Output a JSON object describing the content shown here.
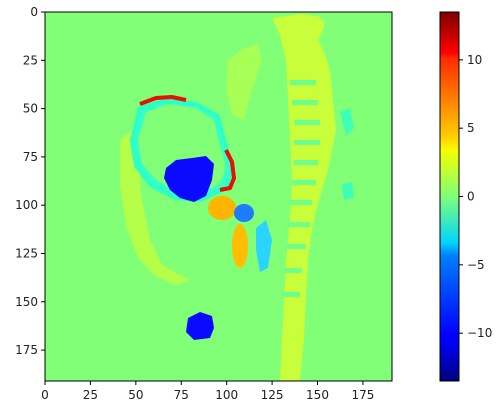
{
  "chart_data": {
    "type": "heatmap",
    "title": "",
    "xlabel": "",
    "ylabel": "",
    "xlim": [
      0,
      191
    ],
    "ylim": [
      191,
      0
    ],
    "x_ticks": [
      0,
      25,
      50,
      75,
      100,
      125,
      150,
      175
    ],
    "y_ticks": [
      0,
      25,
      50,
      75,
      100,
      125,
      150,
      175
    ],
    "colormap": "jet",
    "colorbar": {
      "vmin": -13.5,
      "vmax": 13.5,
      "ticks": [
        10,
        5,
        0,
        -5,
        -10
      ],
      "tick_labels": [
        "10",
        "5",
        "0",
        "−5",
        "−10"
      ]
    },
    "background_value": 0.0,
    "regions": [
      {
        "name": "spine-column",
        "value": 1.5
      },
      {
        "name": "vertebral-bodies",
        "value": -0.6
      },
      {
        "name": "soft-tissue",
        "value": 1.8
      },
      {
        "name": "bladder-rim",
        "value": -3.5
      },
      {
        "name": "bladder-cavity-edge-top",
        "value": 13.0
      },
      {
        "name": "bladder-cavity-edge-right",
        "value": 12.0
      },
      {
        "name": "dark-blue-cavity",
        "value": -12.0
      },
      {
        "name": "dark-blue-small",
        "value": -12.0
      },
      {
        "name": "orange-blob-1",
        "value": 5.0
      },
      {
        "name": "orange-blob-2",
        "value": 4.5
      },
      {
        "name": "blue-blob",
        "value": -7.0
      },
      {
        "name": "cyan-tissue",
        "value": -3.0
      }
    ]
  },
  "colors": {
    "background": "#80ff77",
    "axis": "#000000"
  }
}
